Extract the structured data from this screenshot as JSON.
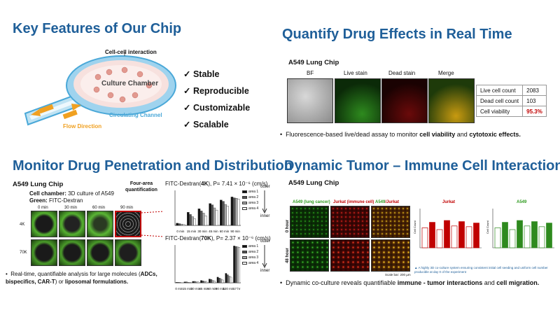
{
  "colors": {
    "heading": "#1f5f99",
    "accent": "#c00000",
    "flow": "#f0a020",
    "channel": "#4aa8d8"
  },
  "q1": {
    "title": "Key Features of Our Chip",
    "diagram": {
      "cell_interaction": "Cell-cell interaction",
      "chamber": "Culture Chamber",
      "channel": "Circulating Channel",
      "flow": "Flow Direction"
    },
    "features": [
      "Stable",
      "Reproducible",
      "Customizable",
      "Scalable"
    ]
  },
  "q2": {
    "title": "Quantify Drug Effects in Real Time",
    "chip": "A549 Lung Chip",
    "panels": [
      "BF",
      "Live stain",
      "Dead stain",
      "Merge"
    ],
    "stats": [
      {
        "label": "Live cell count",
        "value": "2083"
      },
      {
        "label": "Dead cell count",
        "value": "103"
      },
      {
        "label": "Cell viability",
        "value": "95.3%"
      }
    ],
    "bullet_pre": "Fluorescence-based live/dead assay to monitor ",
    "bullet_b1": "cell viability",
    "bullet_mid": " and ",
    "bullet_b2": "cytotoxic effects."
  },
  "q3": {
    "title": "Monitor Drug Penetration and Distribution",
    "chip": "A549 Lung Chip",
    "chamber_label": "Cell chamber:",
    "chamber_text": " 3D culture of A549",
    "green_label": "Green:",
    "green_text": " FITC-Dextran",
    "four_area": "Four-area quantification",
    "times": [
      "0 min",
      "30 min",
      "60 min",
      "90 min"
    ],
    "rows": [
      "4K",
      "70K"
    ],
    "chart1_title_pre": "FITC-Dextran(",
    "chart1_title_b": "4K",
    "chart1_title_post": "), ",
    "chart1_p": "P= 7.41 × 10⁻⁶ (cm/s)",
    "chart2_title_b": "70K",
    "chart2_p": "P= 2.37 × 10⁻⁶ (cm/s)",
    "legend": [
      "area 1",
      "area 2",
      "area 3",
      "area 4"
    ],
    "outer": "outer",
    "inner": "inner",
    "bullet_pre": "Real-time, quantifiable analysis for large molecules (",
    "bullet_b1": "ADCs, bispecifics, CAR-T",
    "bullet_mid": ") or ",
    "bullet_b2": "liposomal formulations."
  },
  "q4": {
    "title": "Dynamic Tumor – Immune Cell Interactions",
    "chip": "A549 Lung Chip",
    "col1": "A549 (lung cancer)",
    "col2": "Jurkat (immune cell)",
    "col3a": "A549",
    "col3b": "/Jurkat",
    "row1": "0 hour",
    "row2": "48 hour",
    "scale": "Scale bar: 200 µm",
    "chart_a": "Jurkat",
    "chart_b": "A549",
    "ylabel": "Cell Count",
    "note": "A highly 3D co-culture system ensuring consistent initial cell seeding and uniform cell number producible at day 0 of the experiment",
    "bullet_pre": "Dynamic co-culture reveals quantifiable ",
    "bullet_b1": "immune - tumor interactions",
    "bullet_mid": " and ",
    "bullet_b2": "cell migration."
  },
  "chart_data": [
    {
      "type": "bar",
      "title": "FITC-Dextran(4K)",
      "categories": [
        "0 min",
        "15 min",
        "30 min",
        "45 min",
        "60 min",
        "90 min"
      ],
      "series": [
        {
          "name": "area 1",
          "values": [
            0.05,
            0.3,
            0.38,
            0.5,
            0.58,
            0.65
          ]
        },
        {
          "name": "area 2",
          "values": [
            0.04,
            0.25,
            0.33,
            0.47,
            0.55,
            0.63
          ]
        },
        {
          "name": "area 3",
          "values": [
            0.03,
            0.2,
            0.28,
            0.4,
            0.48,
            0.62
          ]
        },
        {
          "name": "area 4",
          "values": [
            0.02,
            0.15,
            0.22,
            0.35,
            0.44,
            0.6
          ]
        }
      ],
      "ylim": [
        0,
        0.8
      ]
    },
    {
      "type": "bar",
      "title": "FITC-Dextran(70K)",
      "categories": [
        "0 min",
        "15 min",
        "30 min",
        "45 min",
        "60 min",
        "90 min",
        "120 min",
        "17 hr"
      ],
      "series": [
        {
          "name": "area 1",
          "values": [
            0.01,
            0.02,
            0.03,
            0.05,
            0.08,
            0.12,
            0.2,
            0.78
          ]
        },
        {
          "name": "area 2",
          "values": [
            0.01,
            0.02,
            0.03,
            0.04,
            0.07,
            0.1,
            0.17,
            0.77
          ]
        },
        {
          "name": "area 3",
          "values": [
            0.01,
            0.01,
            0.02,
            0.03,
            0.05,
            0.08,
            0.14,
            0.76
          ]
        },
        {
          "name": "area 4",
          "values": [
            0.0,
            0.01,
            0.02,
            0.03,
            0.04,
            0.06,
            0.12,
            0.75
          ]
        }
      ],
      "ylim": [
        0,
        0.8
      ]
    }
  ]
}
